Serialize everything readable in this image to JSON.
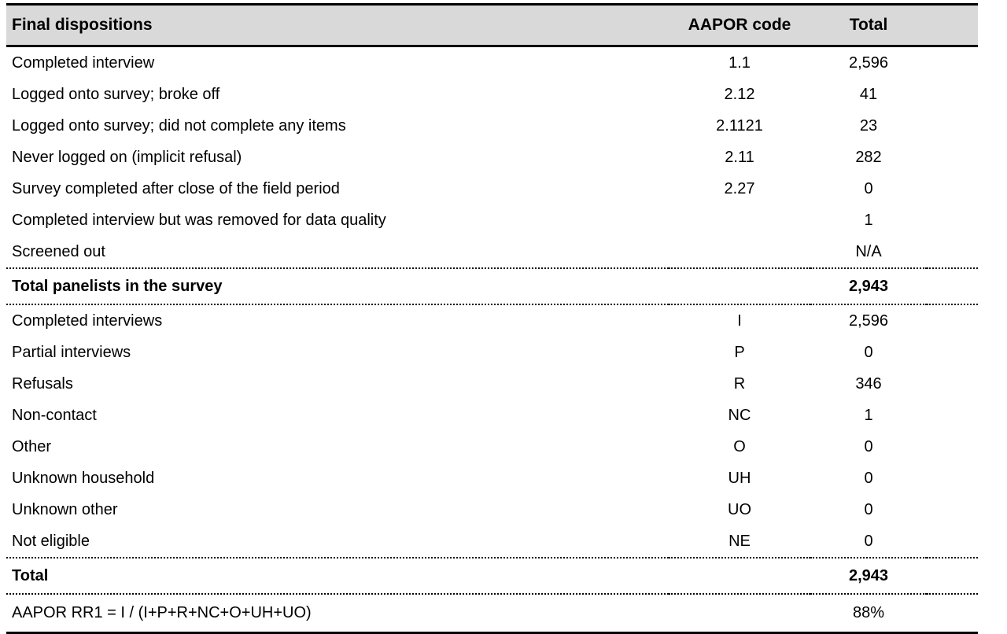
{
  "table": {
    "columns": [
      "Final dispositions",
      "AAPOR code",
      "Total"
    ],
    "section1": [
      {
        "label": "Completed interview",
        "code": "1.1",
        "total": "2,596"
      },
      {
        "label": "Logged onto survey; broke off",
        "code": "2.12",
        "total": "41"
      },
      {
        "label": "Logged onto survey; did not complete any items",
        "code": "2.1121",
        "total": "23"
      },
      {
        "label": "Never logged on (implicit refusal)",
        "code": "2.11",
        "total": "282"
      },
      {
        "label": "Survey completed after close of the field period",
        "code": "2.27",
        "total": "0"
      },
      {
        "label": "Completed interview but was removed for data quality",
        "code": "",
        "total": "1"
      },
      {
        "label": "Screened out",
        "code": "",
        "total": "N/A"
      }
    ],
    "subtotal1": {
      "label": "Total panelists in the survey",
      "code": "",
      "total": "2,943"
    },
    "section2": [
      {
        "label": "Completed interviews",
        "code": "I",
        "total": "2,596"
      },
      {
        "label": "Partial interviews",
        "code": "P",
        "total": "0"
      },
      {
        "label": "Refusals",
        "code": "R",
        "total": "346"
      },
      {
        "label": "Non-contact",
        "code": "NC",
        "total": "1"
      },
      {
        "label": "Other",
        "code": "O",
        "total": "0"
      },
      {
        "label": "Unknown household",
        "code": "UH",
        "total": "0"
      },
      {
        "label": "Unknown other",
        "code": "UO",
        "total": "0"
      },
      {
        "label": "Not eligible",
        "code": "NE",
        "total": "0"
      }
    ],
    "subtotal2": {
      "label": "Total",
      "code": "",
      "total": "2,943"
    },
    "rate": {
      "label": "AAPOR RR1 = I / (I+P+R+NC+O+UH+UO)",
      "code": "",
      "total": "88%"
    }
  },
  "colors": {
    "header_bg": "#d9d9d9",
    "rule": "#000000",
    "text": "#000000",
    "background": "#ffffff"
  }
}
